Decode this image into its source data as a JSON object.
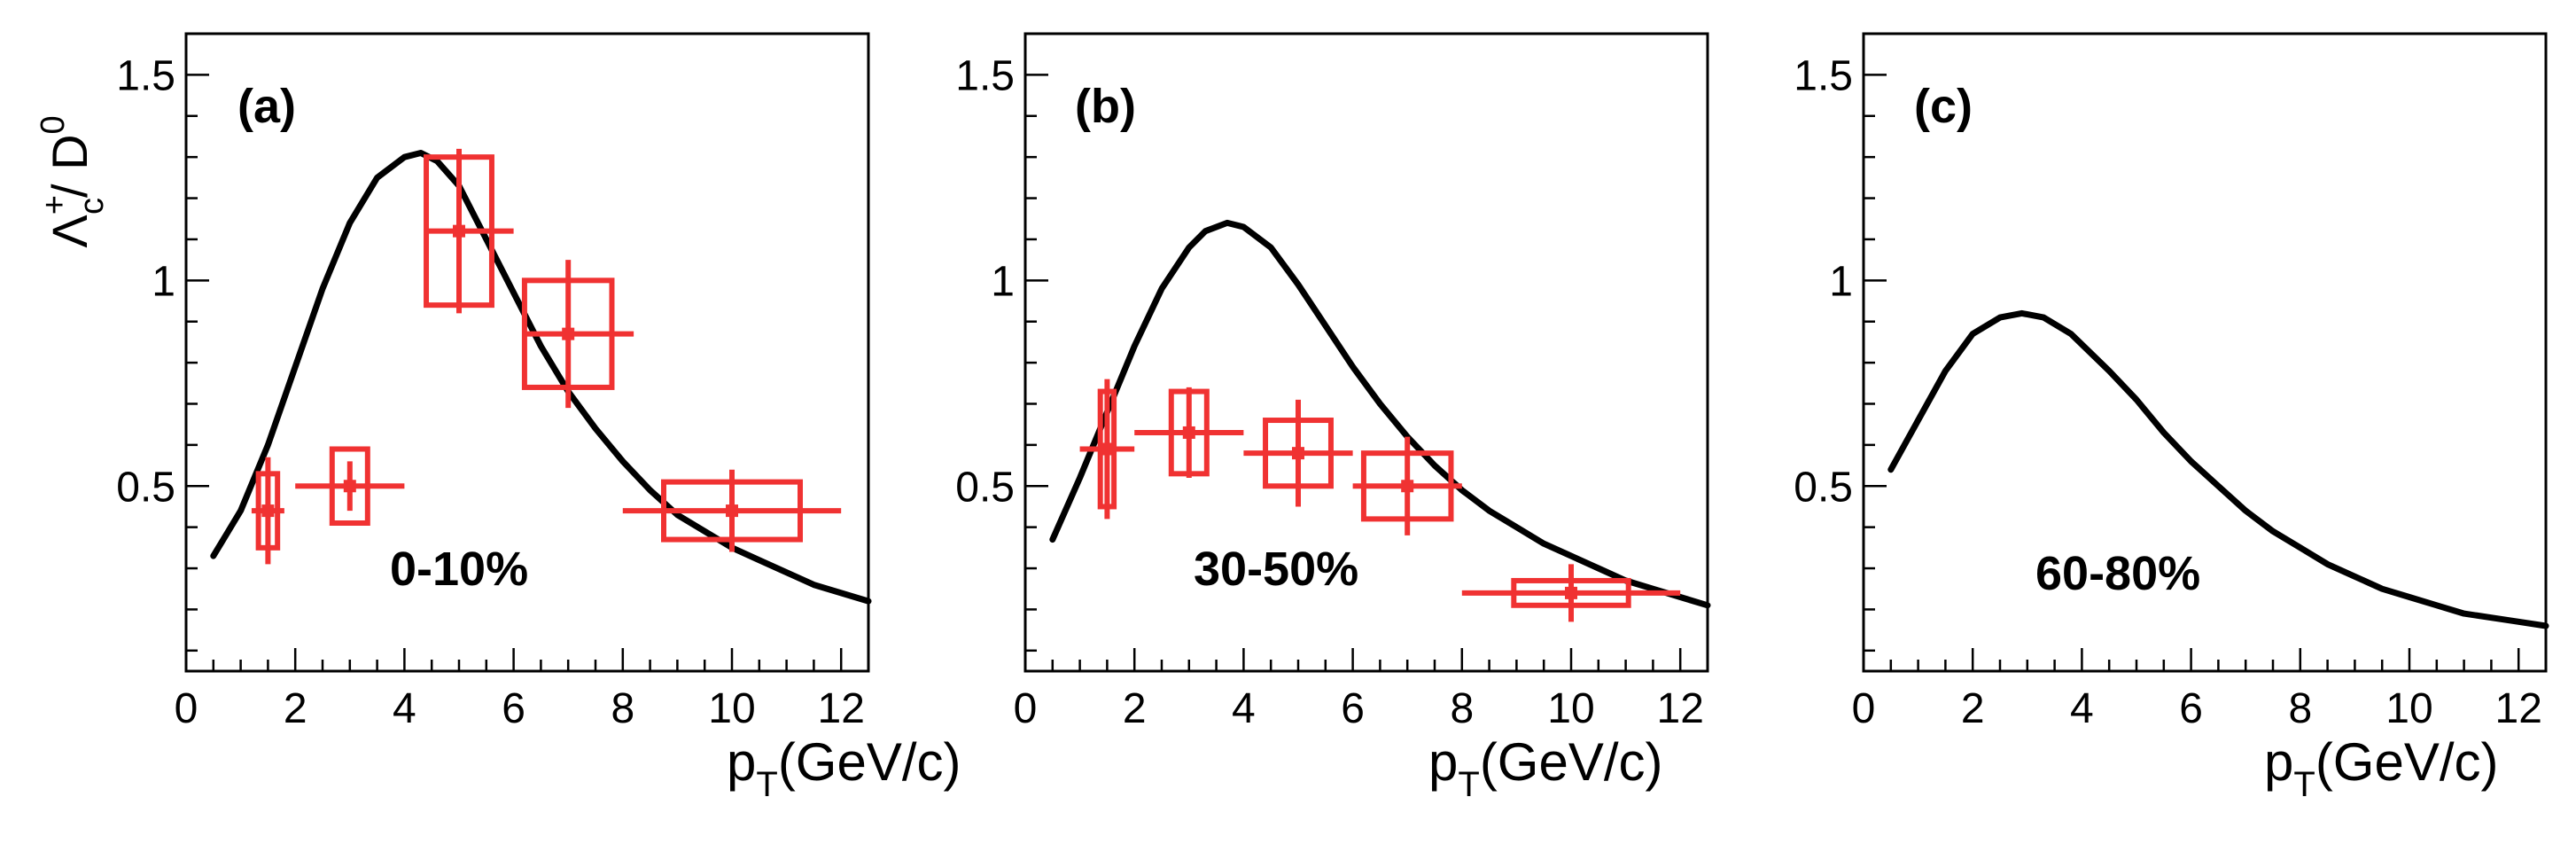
{
  "figure": {
    "y_axis_title": {
      "main": "Λ",
      "sup": "+",
      "sub": "c",
      "slash": "/ D",
      "d_sup": "0"
    },
    "x_axis_title": {
      "main": "p",
      "sub": "T",
      "rest": "(GeV/c)"
    }
  },
  "chart_data": [
    {
      "type": "scatter",
      "panel_label": "(a)",
      "centrality": "0-10%",
      "xlim": [
        0,
        12.5
      ],
      "ylim": [
        0.05,
        1.6
      ],
      "x_ticks": [
        0,
        2,
        4,
        6,
        8,
        10,
        12
      ],
      "x_tick_labels": [
        "0",
        "2",
        "4",
        "6",
        "8",
        "10",
        "12"
      ],
      "y_ticks": [
        0.5,
        1,
        1.5
      ],
      "y_tick_labels": [
        "0.5",
        "1",
        "1.5"
      ],
      "colors": {
        "data": "#f03232",
        "model": "#000000"
      },
      "data_points": [
        {
          "x": 1.5,
          "y": 0.44,
          "xlo": 1.2,
          "xhi": 1.8,
          "stat": 0.13,
          "sys_w": 0.35,
          "sys_h": 0.09
        },
        {
          "x": 3.0,
          "y": 0.5,
          "xlo": 2.0,
          "xhi": 4.0,
          "stat": 0.06,
          "sys_w": 0.65,
          "sys_h": 0.09
        },
        {
          "x": 5.0,
          "y": 1.12,
          "xlo": 4.4,
          "xhi": 6.0,
          "stat": 0.2,
          "sys_w": 1.2,
          "sys_h": 0.18
        },
        {
          "x": 7.0,
          "y": 0.87,
          "xlo": 6.2,
          "xhi": 8.2,
          "stat": 0.18,
          "sys_w": 1.6,
          "sys_h": 0.13
        },
        {
          "x": 10.0,
          "y": 0.44,
          "xlo": 8.0,
          "xhi": 12.0,
          "stat": 0.1,
          "sys_w": 2.5,
          "sys_h": 0.07
        }
      ],
      "model_curve": {
        "x": [
          0.5,
          1.0,
          1.5,
          2.0,
          2.5,
          3.0,
          3.5,
          4.0,
          4.3,
          4.6,
          5.0,
          5.5,
          6.0,
          6.5,
          7.0,
          7.5,
          8.0,
          8.5,
          9.0,
          9.5,
          10.0,
          10.5,
          11.0,
          11.5,
          12.0,
          12.5
        ],
        "y": [
          0.33,
          0.44,
          0.6,
          0.79,
          0.98,
          1.14,
          1.25,
          1.3,
          1.31,
          1.29,
          1.23,
          1.1,
          0.97,
          0.84,
          0.73,
          0.64,
          0.56,
          0.49,
          0.43,
          0.39,
          0.35,
          0.32,
          0.29,
          0.26,
          0.24,
          0.22
        ]
      }
    },
    {
      "type": "scatter",
      "panel_label": "(b)",
      "centrality": "30-50%",
      "xlim": [
        0,
        12.5
      ],
      "ylim": [
        0.05,
        1.6
      ],
      "x_ticks": [
        0,
        2,
        4,
        6,
        8,
        10,
        12
      ],
      "x_tick_labels": [
        "0",
        "2",
        "4",
        "6",
        "8",
        "10",
        "12"
      ],
      "y_ticks": [
        0.5,
        1,
        1.5
      ],
      "y_tick_labels": [
        "0.5",
        "1",
        "1.5"
      ],
      "colors": {
        "data": "#f03232",
        "model": "#000000"
      },
      "data_points": [
        {
          "x": 1.5,
          "y": 0.59,
          "xlo": 1.0,
          "xhi": 2.0,
          "stat": 0.17,
          "sys_w": 0.25,
          "sys_h": 0.14
        },
        {
          "x": 3.0,
          "y": 0.63,
          "xlo": 2.0,
          "xhi": 4.0,
          "stat": 0.11,
          "sys_w": 0.65,
          "sys_h": 0.1
        },
        {
          "x": 5.0,
          "y": 0.58,
          "xlo": 4.0,
          "xhi": 6.0,
          "stat": 0.13,
          "sys_w": 1.2,
          "sys_h": 0.08
        },
        {
          "x": 7.0,
          "y": 0.5,
          "xlo": 6.0,
          "xhi": 8.0,
          "stat": 0.12,
          "sys_w": 1.6,
          "sys_h": 0.08
        },
        {
          "x": 10.0,
          "y": 0.24,
          "xlo": 8.0,
          "xhi": 12.0,
          "stat": 0.07,
          "sys_w": 2.1,
          "sys_h": 0.03
        }
      ],
      "model_curve": {
        "x": [
          0.5,
          1.0,
          1.5,
          2.0,
          2.5,
          3.0,
          3.3,
          3.7,
          4.0,
          4.5,
          5.0,
          5.5,
          6.0,
          6.5,
          7.0,
          7.5,
          8.0,
          8.5,
          9.0,
          9.5,
          10.0,
          10.5,
          11.0,
          11.5,
          12.0,
          12.5
        ],
        "y": [
          0.37,
          0.52,
          0.68,
          0.84,
          0.98,
          1.08,
          1.12,
          1.14,
          1.13,
          1.08,
          0.99,
          0.89,
          0.79,
          0.7,
          0.62,
          0.55,
          0.49,
          0.44,
          0.4,
          0.36,
          0.33,
          0.3,
          0.27,
          0.25,
          0.23,
          0.21
        ]
      }
    },
    {
      "type": "line",
      "panel_label": "(c)",
      "centrality": "60-80%",
      "xlim": [
        0,
        12.5
      ],
      "ylim": [
        0.05,
        1.6
      ],
      "x_ticks": [
        0,
        2,
        4,
        6,
        8,
        10,
        12
      ],
      "x_tick_labels": [
        "0",
        "2",
        "4",
        "6",
        "8",
        "10",
        "12"
      ],
      "y_ticks": [
        0.5,
        1,
        1.5
      ],
      "y_tick_labels": [
        "0.5",
        "1",
        "1.5"
      ],
      "colors": {
        "data": "#f03232",
        "model": "#000000"
      },
      "data_points": [],
      "model_curve": {
        "x": [
          0.5,
          1.0,
          1.5,
          2.0,
          2.5,
          2.9,
          3.3,
          3.8,
          4.5,
          5.0,
          5.5,
          6.0,
          6.5,
          7.0,
          7.5,
          8.0,
          8.5,
          9.0,
          9.5,
          10.0,
          10.5,
          11.0,
          11.5,
          12.0,
          12.5
        ],
        "y": [
          0.54,
          0.66,
          0.78,
          0.87,
          0.91,
          0.92,
          0.91,
          0.87,
          0.78,
          0.71,
          0.63,
          0.56,
          0.5,
          0.44,
          0.39,
          0.35,
          0.31,
          0.28,
          0.25,
          0.23,
          0.21,
          0.19,
          0.18,
          0.17,
          0.16
        ]
      }
    }
  ]
}
